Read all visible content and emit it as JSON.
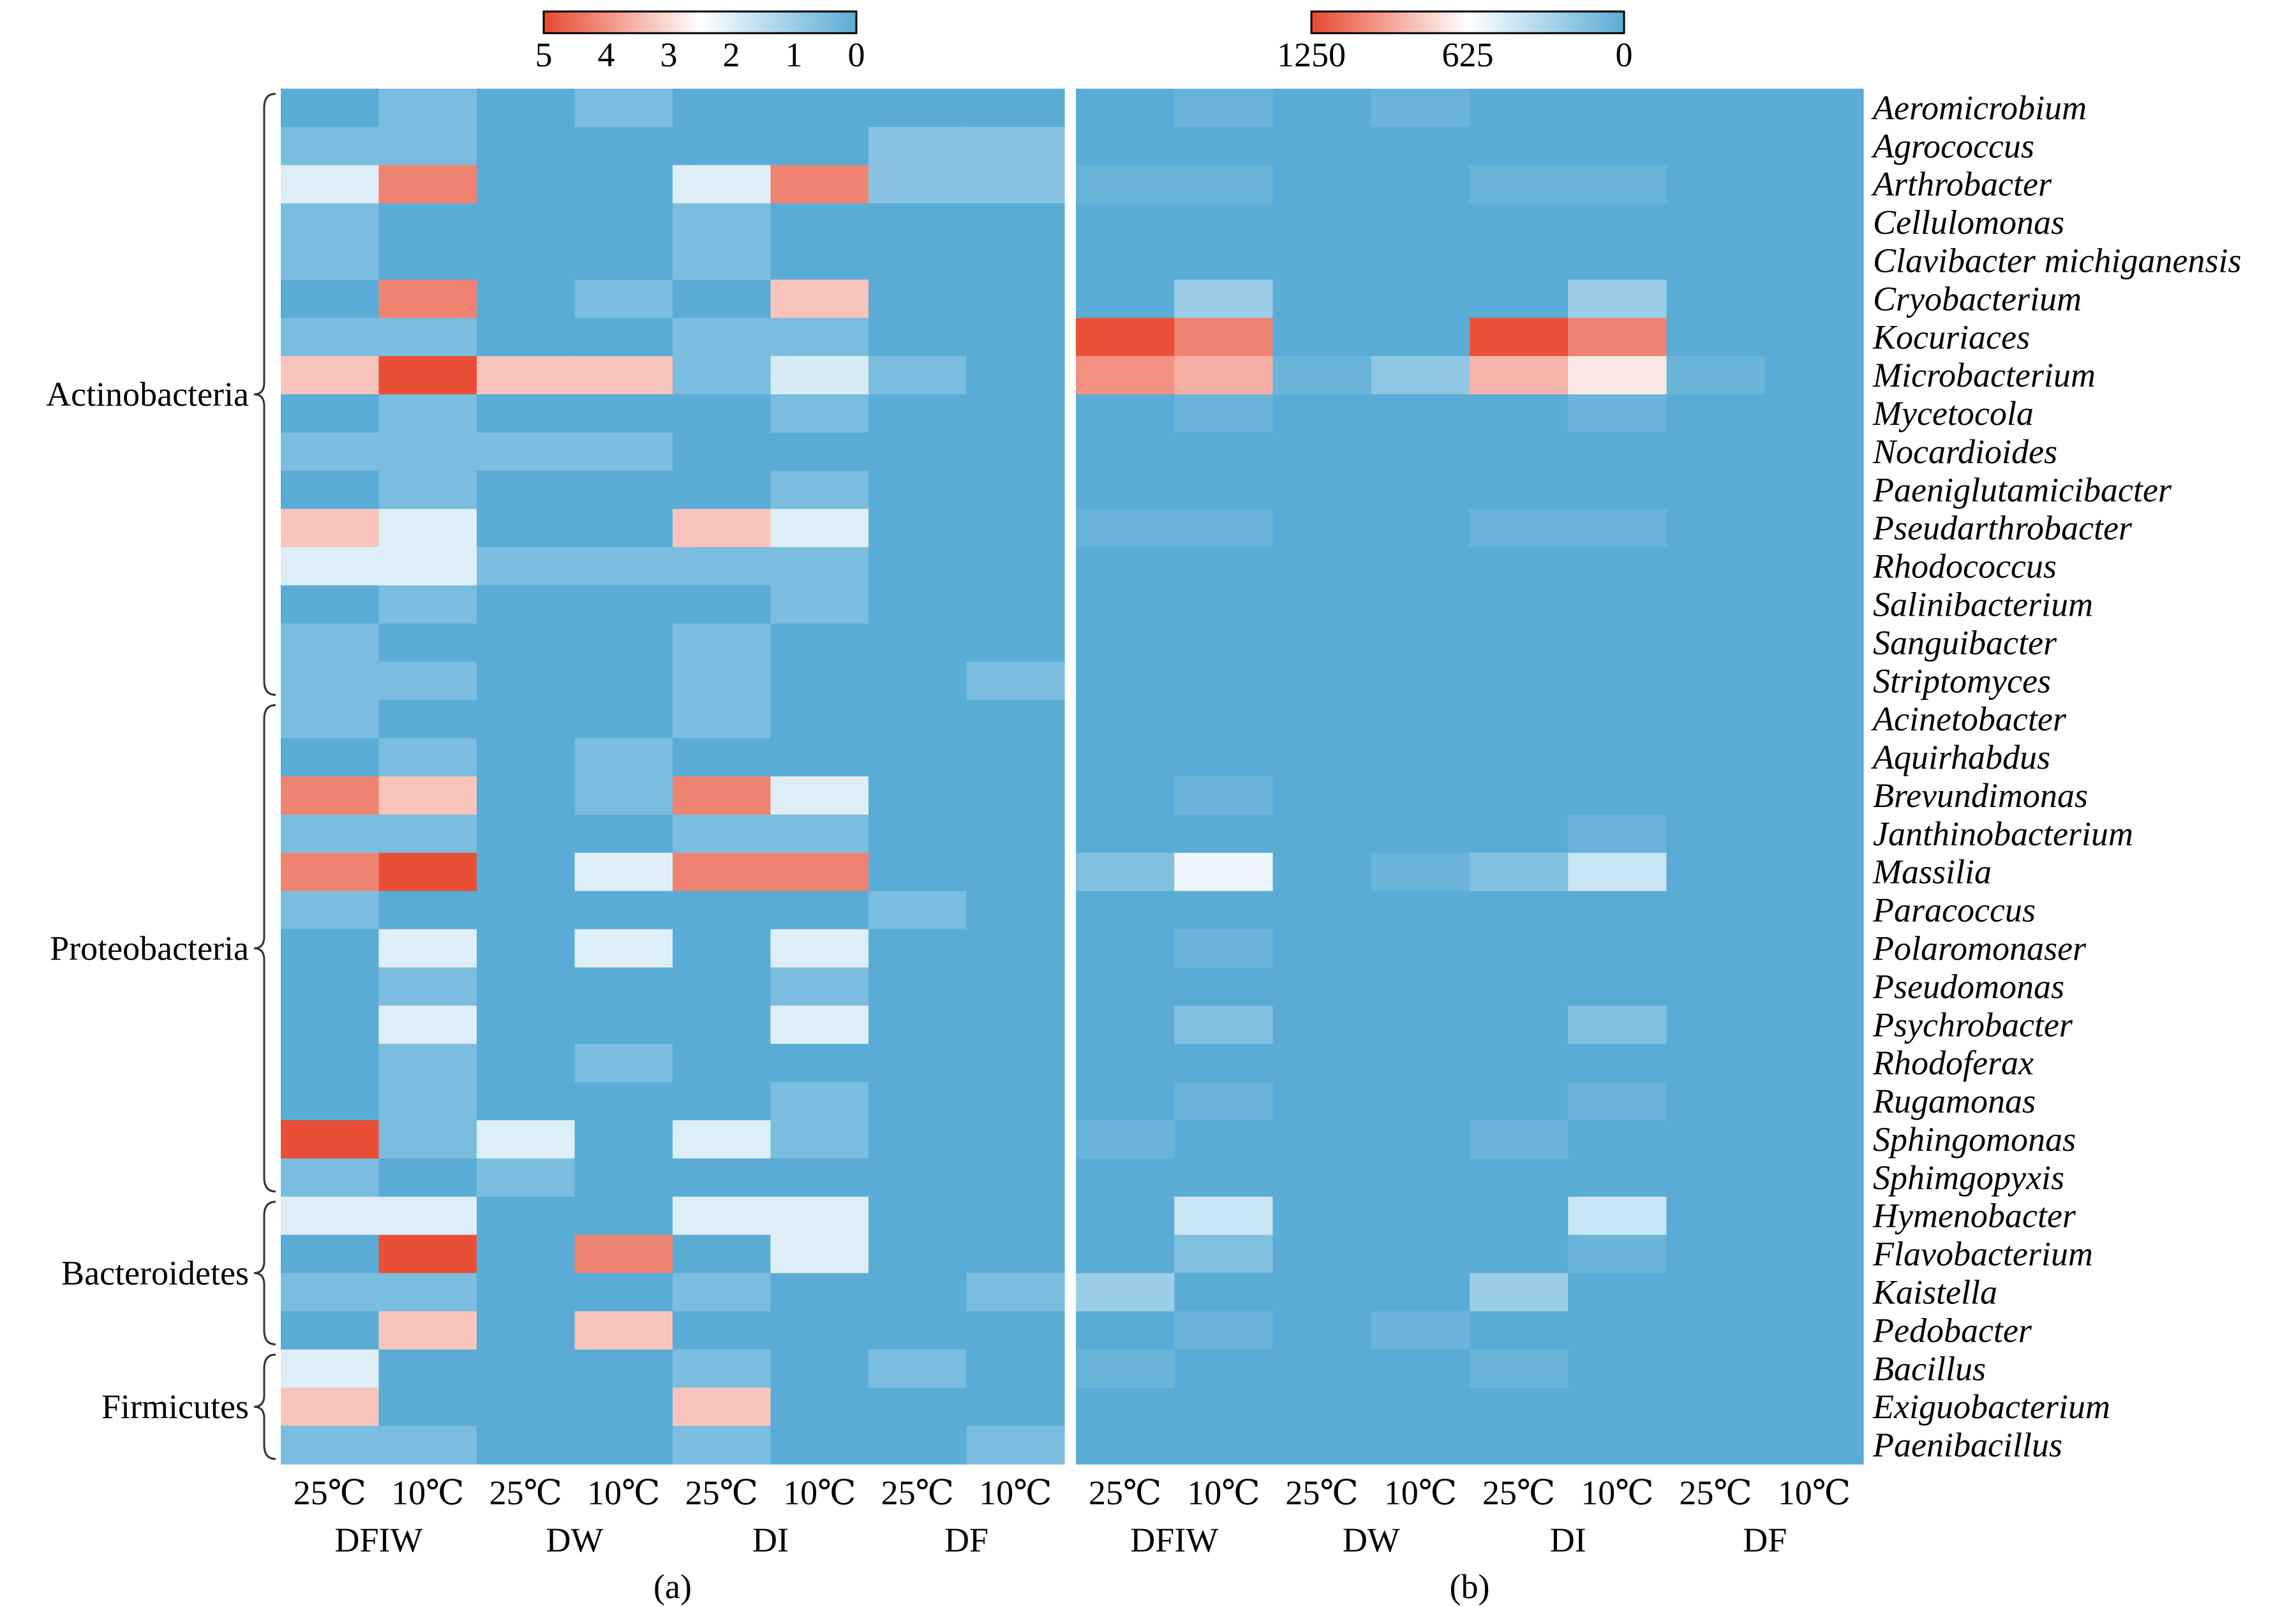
{
  "chart_data": [
    {
      "type": "heatmap",
      "panel_label": "(a)",
      "colorbar": {
        "min": 0,
        "max": 5,
        "direction": "high-left",
        "tick_labels": [
          "5",
          "4",
          "3",
          "2",
          "1",
          "0"
        ],
        "low_color": "#5aacd6",
        "mid_color": "#ffffff",
        "high_color": "#e8482e"
      },
      "columns": [
        "25℃",
        "10℃",
        "25℃",
        "10℃",
        "25℃",
        "10℃",
        "25℃",
        "10℃"
      ],
      "groups": [
        "DFIW",
        "DW",
        "DI",
        "DF"
      ],
      "values": [
        [
          0.0,
          0.5,
          0.0,
          0.5,
          0.0,
          0.0,
          0.0,
          0.0
        ],
        [
          0.5,
          0.5,
          0.0,
          0.0,
          0.0,
          0.0,
          0.7,
          0.7
        ],
        [
          2.0,
          4.2,
          0.0,
          0.0,
          2.0,
          4.2,
          0.7,
          0.7
        ],
        [
          0.5,
          0.0,
          0.0,
          0.0,
          0.5,
          0.0,
          0.0,
          0.0
        ],
        [
          0.5,
          0.0,
          0.0,
          0.0,
          0.5,
          0.0,
          0.0,
          0.0
        ],
        [
          0.0,
          4.2,
          0.0,
          0.5,
          0.0,
          3.3,
          0.0,
          0.0
        ],
        [
          0.5,
          0.5,
          0.0,
          0.0,
          0.5,
          0.5,
          0.0,
          0.0
        ],
        [
          3.3,
          4.9,
          3.3,
          3.3,
          0.5,
          1.9,
          0.5,
          0.0
        ],
        [
          0.0,
          0.5,
          0.0,
          0.0,
          0.0,
          0.5,
          0.0,
          0.0
        ],
        [
          0.5,
          0.5,
          0.5,
          0.5,
          0.0,
          0.0,
          0.0,
          0.0
        ],
        [
          0.0,
          0.5,
          0.0,
          0.0,
          0.0,
          0.5,
          0.0,
          0.0
        ],
        [
          3.3,
          2.0,
          0.0,
          0.0,
          3.3,
          2.0,
          0.0,
          0.0
        ],
        [
          2.0,
          2.0,
          0.5,
          0.5,
          0.5,
          0.5,
          0.0,
          0.0
        ],
        [
          0.0,
          0.5,
          0.0,
          0.0,
          0.0,
          0.5,
          0.0,
          0.0
        ],
        [
          0.5,
          0.0,
          0.0,
          0.0,
          0.5,
          0.0,
          0.0,
          0.0
        ],
        [
          0.5,
          0.5,
          0.0,
          0.0,
          0.5,
          0.0,
          0.0,
          0.5
        ],
        [
          0.5,
          0.0,
          0.0,
          0.0,
          0.5,
          0.0,
          0.0,
          0.0
        ],
        [
          0.0,
          0.5,
          0.0,
          0.5,
          0.0,
          0.0,
          0.0,
          0.0
        ],
        [
          4.2,
          3.3,
          0.0,
          0.5,
          4.2,
          2.0,
          0.0,
          0.0
        ],
        [
          0.5,
          0.5,
          0.0,
          0.0,
          0.5,
          0.5,
          0.0,
          0.0
        ],
        [
          4.2,
          4.9,
          0.0,
          2.0,
          4.2,
          4.2,
          0.0,
          0.0
        ],
        [
          0.5,
          0.0,
          0.0,
          0.0,
          0.0,
          0.0,
          0.5,
          0.0
        ],
        [
          0.0,
          2.0,
          0.0,
          2.0,
          0.0,
          2.0,
          0.0,
          0.0
        ],
        [
          0.0,
          0.5,
          0.0,
          0.0,
          0.0,
          0.5,
          0.0,
          0.0
        ],
        [
          0.0,
          2.0,
          0.0,
          0.0,
          0.0,
          2.0,
          0.0,
          0.0
        ],
        [
          0.0,
          0.5,
          0.0,
          0.5,
          0.0,
          0.0,
          0.0,
          0.0
        ],
        [
          0.0,
          0.5,
          0.0,
          0.0,
          0.0,
          0.5,
          0.0,
          0.0
        ],
        [
          4.9,
          0.5,
          2.0,
          0.0,
          2.0,
          0.5,
          0.0,
          0.0
        ],
        [
          0.5,
          0.0,
          0.5,
          0.0,
          0.0,
          0.0,
          0.0,
          0.0
        ],
        [
          2.0,
          2.0,
          0.0,
          0.0,
          2.0,
          2.0,
          0.0,
          0.0
        ],
        [
          0.0,
          4.9,
          0.0,
          4.2,
          0.0,
          2.0,
          0.0,
          0.0
        ],
        [
          0.5,
          0.5,
          0.0,
          0.0,
          0.5,
          0.0,
          0.0,
          0.5
        ],
        [
          0.0,
          3.3,
          0.0,
          3.3,
          0.0,
          0.0,
          0.0,
          0.0
        ],
        [
          2.0,
          0.0,
          0.0,
          0.0,
          0.5,
          0.0,
          0.5,
          0.0
        ],
        [
          3.3,
          0.0,
          0.0,
          0.0,
          3.3,
          0.0,
          0.0,
          0.0
        ],
        [
          0.5,
          0.5,
          0.0,
          0.0,
          0.5,
          0.0,
          0.0,
          0.5
        ]
      ]
    },
    {
      "type": "heatmap",
      "panel_label": "(b)",
      "colorbar": {
        "min": 0,
        "max": 1250,
        "direction": "high-left",
        "tick_labels": [
          "1250",
          "625",
          "0"
        ],
        "low_color": "#5aacd6",
        "mid_color": "#ffffff",
        "high_color": "#e8482e"
      },
      "columns": [
        "25℃",
        "10℃",
        "25℃",
        "10℃",
        "25℃",
        "10℃",
        "25℃",
        "10℃"
      ],
      "groups": [
        "DFIW",
        "DW",
        "DI",
        "DF"
      ],
      "values": [
        [
          0,
          60,
          0,
          60,
          0,
          0,
          0,
          0
        ],
        [
          0,
          0,
          0,
          0,
          0,
          0,
          0,
          0
        ],
        [
          60,
          60,
          0,
          0,
          60,
          60,
          0,
          0
        ],
        [
          0,
          0,
          0,
          0,
          0,
          0,
          0,
          0
        ],
        [
          0,
          0,
          0,
          0,
          0,
          0,
          0,
          0
        ],
        [
          0,
          250,
          0,
          0,
          0,
          250,
          0,
          0
        ],
        [
          1220,
          1050,
          0,
          0,
          1220,
          1050,
          0,
          0
        ],
        [
          1000,
          900,
          60,
          200,
          880,
          700,
          60,
          0
        ],
        [
          0,
          60,
          0,
          0,
          0,
          60,
          0,
          0
        ],
        [
          0,
          0,
          0,
          0,
          0,
          0,
          0,
          0
        ],
        [
          0,
          0,
          0,
          0,
          0,
          0,
          0,
          0
        ],
        [
          60,
          60,
          0,
          0,
          60,
          60,
          0,
          0
        ],
        [
          0,
          0,
          0,
          0,
          0,
          0,
          0,
          0
        ],
        [
          0,
          0,
          0,
          0,
          0,
          0,
          0,
          0
        ],
        [
          0,
          0,
          0,
          0,
          0,
          0,
          0,
          0
        ],
        [
          0,
          0,
          0,
          0,
          0,
          0,
          0,
          0
        ],
        [
          0,
          0,
          0,
          0,
          0,
          0,
          0,
          0
        ],
        [
          0,
          0,
          0,
          0,
          0,
          0,
          0,
          0
        ],
        [
          0,
          60,
          0,
          0,
          0,
          0,
          0,
          0
        ],
        [
          0,
          0,
          0,
          0,
          0,
          60,
          0,
          0
        ],
        [
          150,
          560,
          0,
          60,
          150,
          420,
          0,
          0
        ],
        [
          0,
          0,
          0,
          0,
          0,
          0,
          0,
          0
        ],
        [
          0,
          60,
          0,
          0,
          0,
          0,
          0,
          0
        ],
        [
          0,
          0,
          0,
          0,
          0,
          0,
          0,
          0
        ],
        [
          0,
          150,
          0,
          0,
          0,
          150,
          0,
          0
        ],
        [
          0,
          0,
          0,
          0,
          0,
          0,
          0,
          0
        ],
        [
          0,
          60,
          0,
          0,
          0,
          60,
          0,
          0
        ],
        [
          60,
          0,
          0,
          0,
          60,
          0,
          0,
          0
        ],
        [
          0,
          0,
          0,
          0,
          0,
          0,
          0,
          0
        ],
        [
          0,
          420,
          0,
          0,
          0,
          420,
          0,
          0
        ],
        [
          0,
          150,
          0,
          0,
          0,
          60,
          0,
          0
        ],
        [
          250,
          0,
          0,
          0,
          250,
          0,
          0,
          0
        ],
        [
          0,
          60,
          0,
          60,
          0,
          0,
          0,
          0
        ],
        [
          60,
          0,
          0,
          0,
          60,
          0,
          0,
          0
        ],
        [
          0,
          0,
          0,
          0,
          0,
          0,
          0,
          0
        ],
        [
          0,
          0,
          0,
          0,
          0,
          0,
          0,
          0
        ]
      ]
    }
  ],
  "species": [
    "Aeromicrobium",
    "Agrococcus",
    "Arthrobacter",
    "Cellulomonas",
    "Clavibacter michiganensis",
    "Cryobacterium",
    "Kocuriaces",
    "Microbacterium",
    "Mycetocola",
    "Nocardioides",
    "Paeniglutamicibacter",
    "Pseudarthrobacter",
    "Rhodococcus",
    "Salinibacterium",
    "Sanguibacter",
    "Striptomyces",
    "Acinetobacter",
    "Aquirhabdus",
    "Brevundimonas",
    "Janthinobacterium",
    "Massilia",
    "Paracoccus",
    "Polaromonaser",
    "Pseudomonas",
    "Psychrobacter",
    "Rhodoferax",
    "Rugamonas",
    "Sphingomonas",
    "Sphimgopyxis",
    "Hymenobacter",
    "Flavobacterium",
    "Kaistella",
    "Pedobacter",
    "Bacillus",
    "Exiguobacterium",
    "Paenibacillus"
  ],
  "phyla": [
    {
      "name": "Actinobacteria",
      "start": 0,
      "end": 15
    },
    {
      "name": "Proteobacteria",
      "start": 16,
      "end": 28
    },
    {
      "name": "Bacteroidetes",
      "start": 29,
      "end": 32
    },
    {
      "name": "Firmicutes",
      "start": 33,
      "end": 35
    }
  ]
}
